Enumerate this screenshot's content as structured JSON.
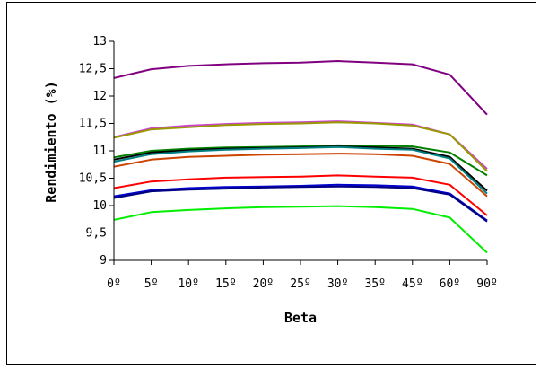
{
  "chart_data": {
    "type": "line",
    "title": "",
    "xlabel": "Beta",
    "ylabel": "Rendimiento (%)",
    "categories": [
      "0º",
      "5º",
      "10º",
      "15º",
      "20º",
      "25º",
      "30º",
      "35º",
      "45º",
      "60º",
      "90º"
    ],
    "ylim": [
      9,
      13
    ],
    "yticks": [
      "9",
      "9,5",
      "10",
      "10,5",
      "11",
      "11,5",
      "12",
      "12,5",
      "13"
    ],
    "ytick_values": [
      9,
      9.5,
      10,
      10.5,
      11,
      11.5,
      12,
      12.5,
      13
    ],
    "grid": false,
    "legend": "none",
    "series": [
      {
        "color": "#800080",
        "values": [
          12.33,
          12.49,
          12.55,
          12.58,
          12.6,
          12.61,
          12.64,
          12.61,
          12.58,
          12.39,
          11.66
        ]
      },
      {
        "color": "#cc44cc",
        "values": [
          11.25,
          11.41,
          11.46,
          11.49,
          11.51,
          11.52,
          11.54,
          11.51,
          11.48,
          11.3,
          10.67
        ]
      },
      {
        "color": "#999900",
        "values": [
          11.24,
          11.39,
          11.43,
          11.47,
          11.49,
          11.5,
          11.52,
          11.5,
          11.46,
          11.3,
          10.63
        ]
      },
      {
        "color": "#008000",
        "values": [
          10.88,
          11.0,
          11.04,
          11.06,
          11.07,
          11.08,
          11.1,
          11.09,
          11.08,
          10.97,
          10.55
        ]
      },
      {
        "color": "#000000",
        "values": [
          10.84,
          10.97,
          11.01,
          11.04,
          11.05,
          11.06,
          11.08,
          11.06,
          11.04,
          10.89,
          10.27
        ]
      },
      {
        "color": "#008080",
        "values": [
          10.8,
          10.94,
          10.99,
          11.02,
          11.04,
          11.05,
          11.07,
          11.04,
          11.02,
          10.86,
          10.22
        ]
      },
      {
        "color": "#cc4400",
        "values": [
          10.71,
          10.84,
          10.89,
          10.91,
          10.93,
          10.94,
          10.95,
          10.94,
          10.91,
          10.76,
          10.17
        ]
      },
      {
        "color": "#ff0000",
        "values": [
          10.32,
          10.44,
          10.48,
          10.51,
          10.52,
          10.53,
          10.55,
          10.53,
          10.51,
          10.38,
          9.82
        ]
      },
      {
        "color": "#0000cc",
        "values": [
          10.17,
          10.28,
          10.32,
          10.34,
          10.35,
          10.36,
          10.38,
          10.37,
          10.35,
          10.22,
          9.73
        ]
      },
      {
        "color": "#000080",
        "values": [
          10.14,
          10.26,
          10.29,
          10.31,
          10.33,
          10.34,
          10.35,
          10.34,
          10.32,
          10.2,
          9.71
        ]
      },
      {
        "color": "#00ee00",
        "values": [
          9.74,
          9.88,
          9.92,
          9.95,
          9.97,
          9.98,
          9.99,
          9.97,
          9.94,
          9.78,
          9.14
        ]
      }
    ]
  }
}
